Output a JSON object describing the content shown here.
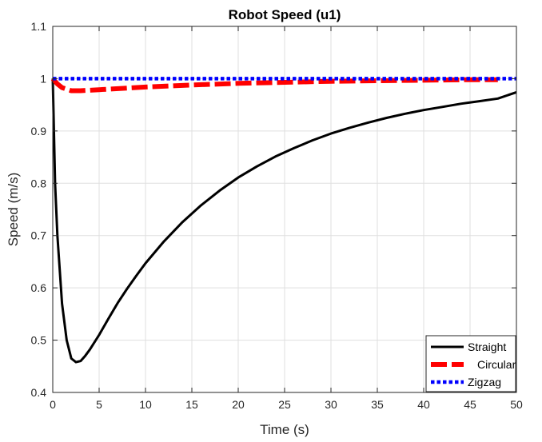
{
  "chart_data": {
    "type": "line",
    "title": "Robot Speed (u1)",
    "xlabel": "Time (s)",
    "ylabel": "Speed (m/s)",
    "xlim": [
      0,
      50
    ],
    "ylim": [
      0.4,
      1.1
    ],
    "xticks": [
      "0",
      "5",
      "10",
      "15",
      "20",
      "25",
      "30",
      "35",
      "40",
      "45",
      "50"
    ],
    "yticks": [
      "0.4",
      "0.5",
      "0.6",
      "0.7",
      "0.8",
      "0.9",
      "1",
      "1.1"
    ],
    "grid": true,
    "legend_position": "bottom-right",
    "series": [
      {
        "name": "Straight",
        "color": "#000000",
        "style": "solid",
        "x": [
          0,
          0.25,
          0.5,
          1,
          1.5,
          2,
          2.5,
          3,
          3.5,
          4,
          5,
          6,
          7,
          8,
          9,
          10,
          12,
          14,
          16,
          18,
          20,
          22,
          24,
          26,
          28,
          30,
          32,
          34,
          36,
          38,
          40,
          42,
          44,
          46,
          48,
          50
        ],
        "y": [
          1.0,
          0.8,
          0.7,
          0.57,
          0.5,
          0.465,
          0.458,
          0.46,
          0.47,
          0.482,
          0.51,
          0.541,
          0.571,
          0.598,
          0.623,
          0.647,
          0.689,
          0.726,
          0.758,
          0.786,
          0.811,
          0.832,
          0.851,
          0.867,
          0.882,
          0.895,
          0.906,
          0.916,
          0.925,
          0.933,
          0.94,
          0.946,
          0.952,
          0.957,
          0.962,
          0.974
        ]
      },
      {
        "name": "Circular",
        "color": "#ff0000",
        "style": "dashed",
        "x": [
          0,
          0.5,
          1,
          2,
          3,
          5,
          8,
          10,
          15,
          20,
          25,
          30,
          35,
          40,
          45,
          48
        ],
        "y": [
          1.0,
          0.99,
          0.983,
          0.977,
          0.977,
          0.979,
          0.982,
          0.984,
          0.988,
          0.991,
          0.993,
          0.995,
          0.996,
          0.997,
          0.998,
          0.998
        ]
      },
      {
        "name": "Zigzag",
        "color": "#0000ff",
        "style": "dotted",
        "x": [
          0,
          50
        ],
        "y": [
          1.0,
          1.0
        ]
      }
    ]
  }
}
